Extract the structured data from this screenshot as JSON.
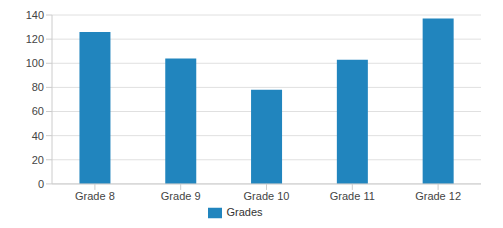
{
  "chart_data": {
    "type": "bar",
    "categories": [
      "Grade 8",
      "Grade 9",
      "Grade 10",
      "Grade 11",
      "Grade 12"
    ],
    "series": [
      {
        "name": "Grades",
        "color": "#2185be",
        "values": [
          126,
          104,
          78,
          103,
          137
        ]
      }
    ],
    "ylim": [
      0,
      140
    ],
    "yticks": [
      0,
      20,
      40,
      60,
      80,
      100,
      120,
      140
    ],
    "grid": true,
    "legend": "bottom"
  }
}
